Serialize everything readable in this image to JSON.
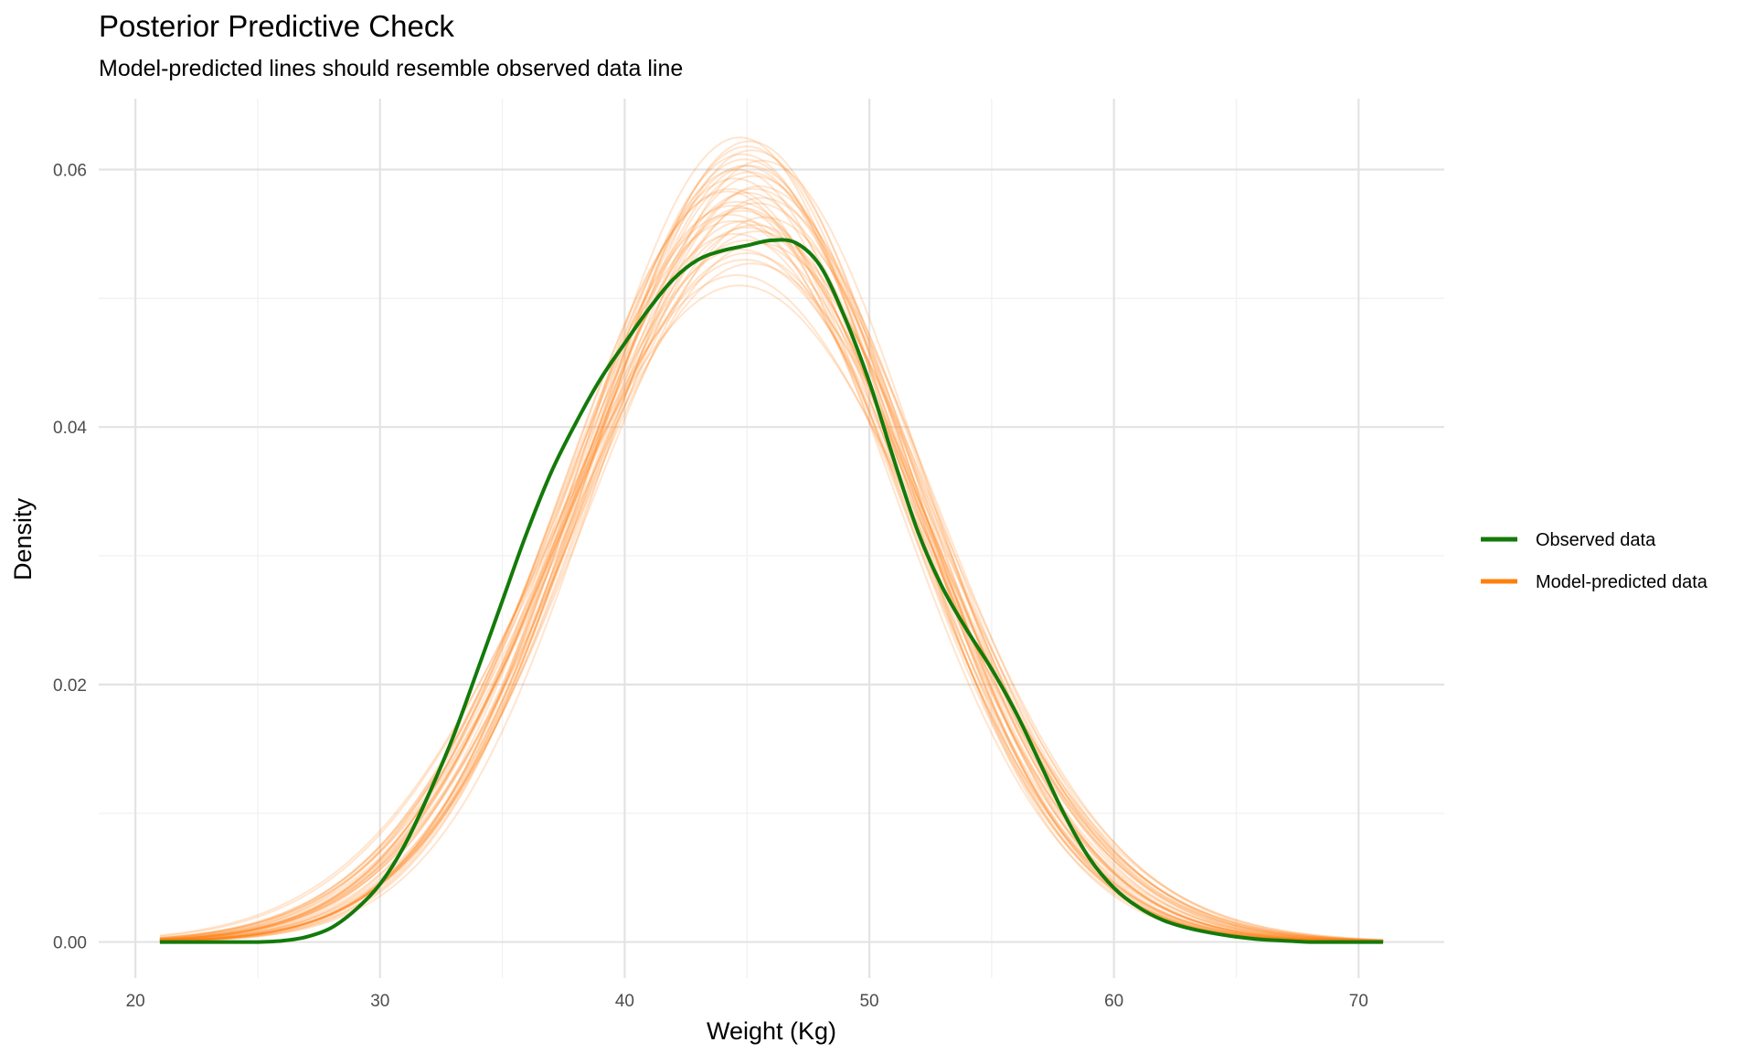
{
  "chart_data": {
    "type": "line",
    "title": "Posterior Predictive Check",
    "subtitle": "Model-predicted lines should resemble observed data line",
    "xlabel": "Weight (Kg)",
    "ylabel": "Density",
    "xlim": [
      18.5,
      73.5
    ],
    "ylim": [
      -0.0028,
      0.0655
    ],
    "x_ticks": [
      20,
      30,
      40,
      50,
      60,
      70
    ],
    "y_ticks": [
      0.0,
      0.02,
      0.04,
      0.06
    ],
    "x_tick_labels": [
      "20",
      "30",
      "40",
      "50",
      "60",
      "70"
    ],
    "y_tick_labels": [
      "0.00",
      "0.02",
      "0.04",
      "0.06"
    ],
    "grid": true,
    "legend_position": "right",
    "colors": {
      "observed": "#137a0a",
      "predicted": "#ff7f0e"
    },
    "legend": [
      {
        "label": "Observed data",
        "color": "#137a0a"
      },
      {
        "label": "Model-predicted data",
        "color": "#ff7f0e"
      }
    ],
    "observed": {
      "x": [
        21,
        22,
        23,
        24,
        25,
        26,
        27,
        28,
        29,
        30,
        31,
        32,
        33,
        34,
        35,
        36,
        37,
        38,
        39,
        40,
        41,
        42,
        43,
        44,
        45,
        46,
        47,
        48,
        49,
        50,
        51,
        52,
        53,
        54,
        55,
        56,
        57,
        58,
        59,
        60,
        61,
        62,
        63,
        64,
        65,
        66,
        67,
        68,
        69,
        70,
        71
      ],
      "y": [
        0.0,
        0.0,
        0.0,
        0.0,
        0.0,
        0.0001,
        0.0004,
        0.0011,
        0.0025,
        0.0045,
        0.0075,
        0.0115,
        0.016,
        0.0212,
        0.0265,
        0.0318,
        0.0365,
        0.0403,
        0.0437,
        0.0465,
        0.0492,
        0.0515,
        0.053,
        0.0537,
        0.0541,
        0.0545,
        0.0543,
        0.0525,
        0.0485,
        0.0435,
        0.0375,
        0.0318,
        0.0275,
        0.0242,
        0.0212,
        0.0178,
        0.0138,
        0.0098,
        0.0065,
        0.0042,
        0.0027,
        0.0017,
        0.0011,
        0.0007,
        0.0004,
        0.0002,
        0.0001,
        0.0,
        0.0,
        0.0,
        0.0
      ]
    },
    "predicted_draws": 40,
    "predicted_summary": {
      "description_mean_sd": "draws approximately normal with mean near 45 kg and peak density between 0.050 and 0.063"
    },
    "predicted": [
      {
        "mu": 44.6,
        "sd": 6.85,
        "amp": 0.0575
      },
      {
        "mu": 45.1,
        "sd": 6.6,
        "amp": 0.0603
      },
      {
        "mu": 44.9,
        "sd": 7.1,
        "amp": 0.056
      },
      {
        "mu": 45.3,
        "sd": 6.75,
        "amp": 0.0585
      },
      {
        "mu": 44.7,
        "sd": 7.4,
        "amp": 0.0538
      },
      {
        "mu": 45.0,
        "sd": 6.45,
        "amp": 0.0618
      },
      {
        "mu": 44.8,
        "sd": 6.95,
        "amp": 0.057
      },
      {
        "mu": 45.4,
        "sd": 7.2,
        "amp": 0.0552
      },
      {
        "mu": 44.5,
        "sd": 6.7,
        "amp": 0.0593
      },
      {
        "mu": 45.2,
        "sd": 7.55,
        "amp": 0.0527
      },
      {
        "mu": 44.9,
        "sd": 6.55,
        "amp": 0.0608
      },
      {
        "mu": 45.6,
        "sd": 6.9,
        "amp": 0.0578
      },
      {
        "mu": 44.3,
        "sd": 7.0,
        "amp": 0.0565
      },
      {
        "mu": 45.0,
        "sd": 7.3,
        "amp": 0.0545
      },
      {
        "mu": 44.7,
        "sd": 6.4,
        "amp": 0.0625
      },
      {
        "mu": 45.5,
        "sd": 6.8,
        "amp": 0.0587
      },
      {
        "mu": 44.6,
        "sd": 7.65,
        "amp": 0.0518
      },
      {
        "mu": 45.1,
        "sd": 6.65,
        "amp": 0.0598
      },
      {
        "mu": 44.4,
        "sd": 6.9,
        "amp": 0.0572
      },
      {
        "mu": 45.3,
        "sd": 7.15,
        "amp": 0.0557
      },
      {
        "mu": 44.8,
        "sd": 6.5,
        "amp": 0.0612
      },
      {
        "mu": 45.7,
        "sd": 7.05,
        "amp": 0.0563
      },
      {
        "mu": 44.2,
        "sd": 6.75,
        "amp": 0.0583
      },
      {
        "mu": 45.0,
        "sd": 7.45,
        "amp": 0.0535
      },
      {
        "mu": 44.9,
        "sd": 6.6,
        "amp": 0.0603
      },
      {
        "mu": 45.4,
        "sd": 6.95,
        "amp": 0.0574
      },
      {
        "mu": 44.5,
        "sd": 7.25,
        "amp": 0.055
      },
      {
        "mu": 45.2,
        "sd": 6.5,
        "amp": 0.0615
      },
      {
        "mu": 44.7,
        "sd": 7.8,
        "amp": 0.051
      },
      {
        "mu": 45.0,
        "sd": 6.85,
        "amp": 0.0582
      },
      {
        "mu": 44.6,
        "sd": 6.6,
        "amp": 0.06
      },
      {
        "mu": 45.5,
        "sd": 7.35,
        "amp": 0.0543
      },
      {
        "mu": 44.8,
        "sd": 7.0,
        "amp": 0.0568
      },
      {
        "mu": 45.1,
        "sd": 6.4,
        "amp": 0.0622
      },
      {
        "mu": 44.4,
        "sd": 7.1,
        "amp": 0.056
      },
      {
        "mu": 45.3,
        "sd": 6.7,
        "amp": 0.0595
      },
      {
        "mu": 44.9,
        "sd": 7.5,
        "amp": 0.053
      },
      {
        "mu": 45.6,
        "sd": 6.55,
        "amp": 0.0607
      },
      {
        "mu": 44.3,
        "sd": 6.8,
        "amp": 0.0585
      },
      {
        "mu": 45.0,
        "sd": 7.2,
        "amp": 0.0555
      }
    ]
  }
}
